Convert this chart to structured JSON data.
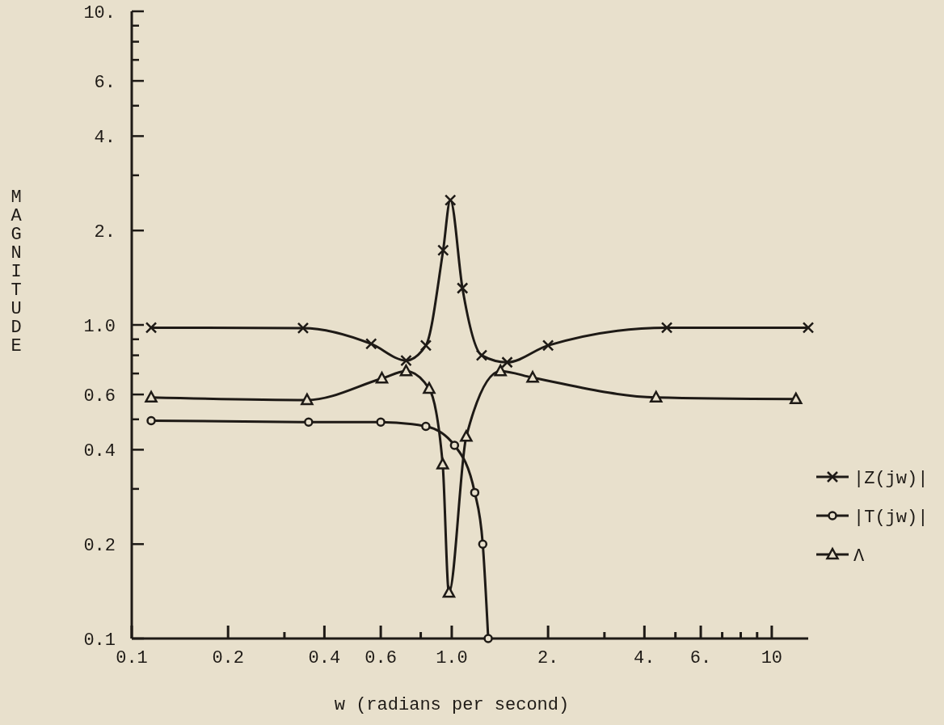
{
  "chart_data": {
    "type": "line",
    "xlabel": "w (radians per second)",
    "ylabel": "MAGNITUDE",
    "log": "xy",
    "grid": false,
    "legend": "bottom right",
    "line_style": "solid",
    "xlim": [
      0.1,
      13
    ],
    "ylim": [
      0.1,
      10
    ],
    "xticks": [
      0.1,
      0.2,
      {
        "value": 0.3,
        "label": null
      },
      0.4,
      0.6,
      {
        "value": 0.8,
        "label": null
      },
      {
        "value": 1,
        "label": "1.0"
      },
      {
        "value": 2,
        "label": "2."
      },
      {
        "value": 3,
        "label": null
      },
      {
        "value": 4,
        "label": "4."
      },
      {
        "value": 5,
        "label": null
      },
      {
        "value": 6,
        "label": "6."
      },
      {
        "value": 7,
        "label": null
      },
      {
        "value": 8,
        "label": null
      },
      {
        "value": 9,
        "label": null
      },
      10
    ],
    "yticks": [
      0.1,
      0.2,
      {
        "value": 0.3,
        "label": null
      },
      0.4,
      {
        "value": 0.5,
        "label": null
      },
      0.6,
      {
        "value": 0.7,
        "label": null
      },
      {
        "value": 0.8,
        "label": null
      },
      {
        "value": 0.9,
        "label": null
      },
      {
        "value": 1,
        "label": "1.0"
      },
      {
        "value": 2,
        "label": "2."
      },
      {
        "value": 3,
        "label": null
      },
      {
        "value": 4,
        "label": "4."
      },
      {
        "value": 5,
        "label": null
      },
      {
        "value": 6,
        "label": "6."
      },
      {
        "value": 7,
        "label": null
      },
      {
        "value": 8,
        "label": null
      },
      {
        "value": 9,
        "label": null
      },
      {
        "value": 10,
        "label": "10."
      }
    ],
    "series": [
      {
        "name": "|Z(jw)|",
        "color": "#1e1a16",
        "marker": "cross",
        "x": [
          0.115,
          0.343,
          0.56,
          0.72,
          0.83,
          0.94,
          0.99,
          1.08,
          1.24,
          1.49,
          2.0,
          4.7,
          13
        ],
        "values": [
          0.98,
          0.977,
          0.87,
          0.77,
          0.86,
          1.73,
          2.5,
          1.31,
          0.8,
          0.76,
          0.86,
          0.98,
          0.98
        ]
      },
      {
        "name": "|T(jw)|",
        "color": "#1e1a16",
        "marker": "circle",
        "x": [
          0.115,
          0.357,
          0.6,
          0.83,
          1.02,
          1.18,
          1.25,
          1.3
        ],
        "values": [
          0.495,
          0.49,
          0.49,
          0.475,
          0.413,
          0.292,
          0.2,
          0.1
        ]
      },
      {
        "name": "Λ",
        "color": "#1e1a16",
        "marker": "triangle",
        "x": [
          0.115,
          0.353,
          0.605,
          0.72,
          0.85,
          0.937,
          0.98,
          1.11,
          1.42,
          1.79,
          4.35,
          11.9
        ],
        "values": [
          0.587,
          0.576,
          0.675,
          0.712,
          0.626,
          0.359,
          0.14,
          0.44,
          0.712,
          0.679,
          0.587,
          0.58
        ]
      }
    ]
  }
}
